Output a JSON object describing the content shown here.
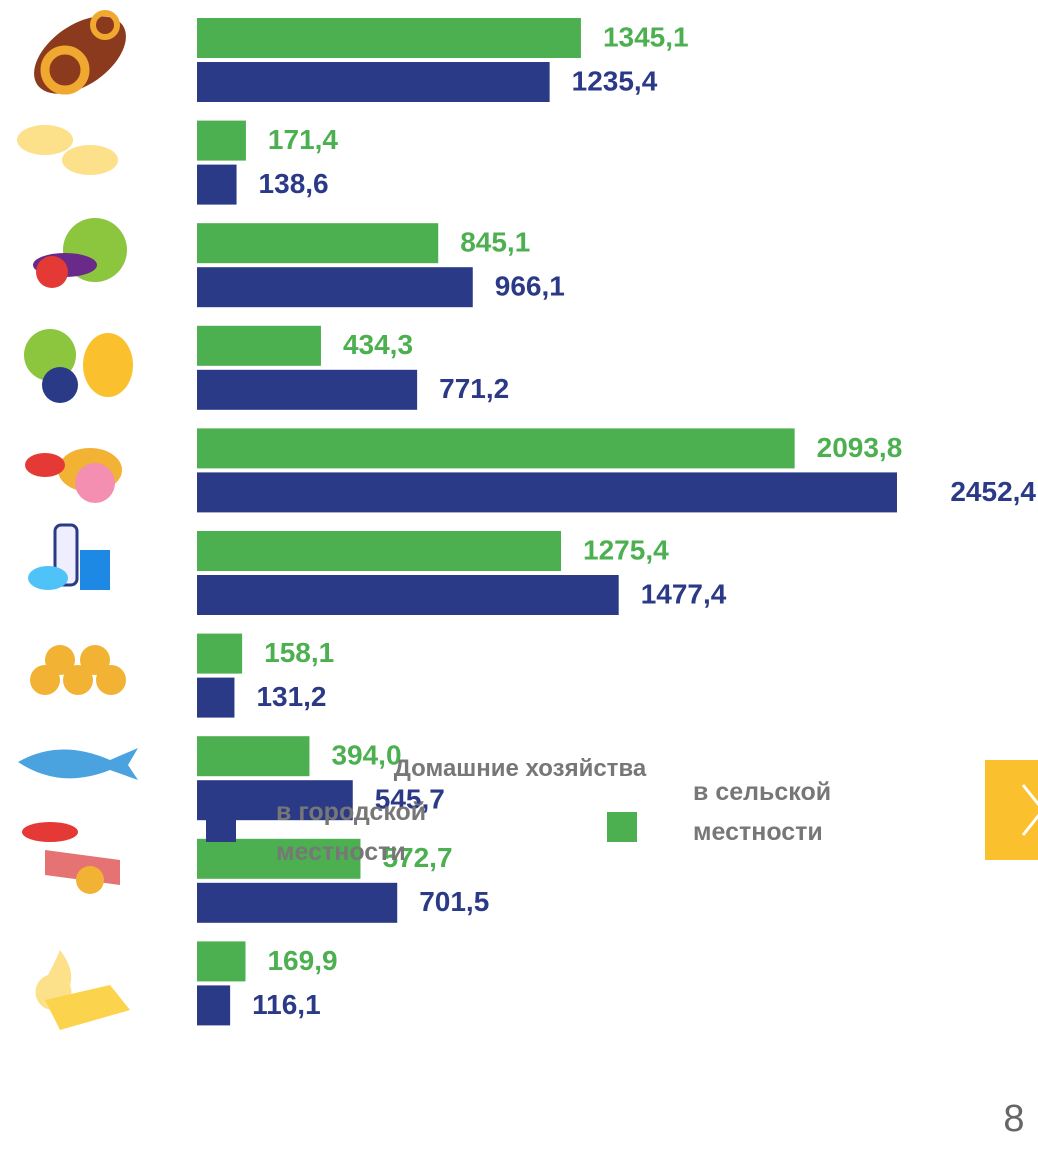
{
  "chart_data": {
    "type": "bar",
    "orientation": "horizontal",
    "categories": [
      null,
      null,
      null,
      null,
      null,
      null,
      null,
      null,
      null,
      null
    ],
    "series": [
      {
        "name": "в городской местности",
        "color": "#2b3a87",
        "values": [
          1235.4,
          138.6,
          966.1,
          771.2,
          2452.4,
          1477.4,
          131.2,
          545.7,
          701.5,
          116.1
        ],
        "value_labels": [
          "1235,4",
          "138,6",
          "966,1",
          "771,2",
          "2452,4",
          "1477,4",
          "131,2",
          "545,7",
          "701,5",
          "116,1"
        ]
      },
      {
        "name": "в сельской местности",
        "color": "#4caf50",
        "values": [
          1345.1,
          171.4,
          845.1,
          434.3,
          2093.8,
          1275.4,
          158.1,
          394.0,
          572.7,
          169.9
        ],
        "value_labels": [
          "1345,1",
          "171,4",
          "845,1",
          "434,3",
          "2093,8",
          "1275,4",
          "158,1",
          "394,0",
          "572,7",
          "169,9"
        ]
      }
    ],
    "xlim": [
      0,
      2452.4
    ],
    "legend_title": "Домашние хозяйства"
  },
  "page_number": "8"
}
